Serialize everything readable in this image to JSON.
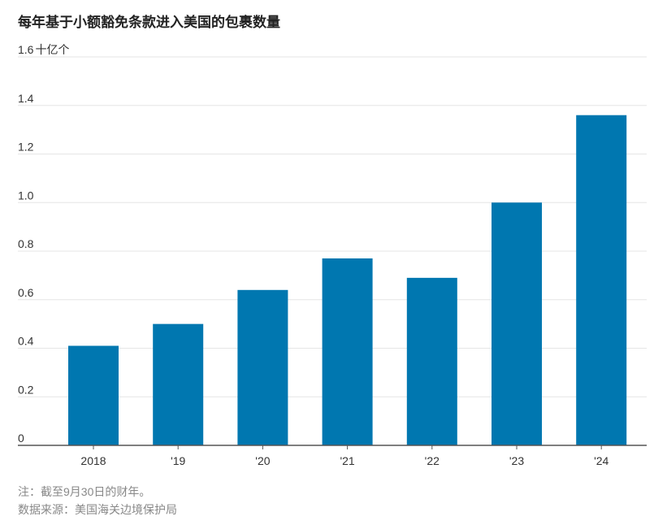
{
  "chart_data": {
    "type": "bar",
    "title": "每年基于小额豁免条款进入美国的包裹数量",
    "ylabel": "",
    "xlabel": "",
    "unit_label": "十亿个",
    "categories": [
      "2018",
      "'19",
      "'20",
      "'21",
      "'22",
      "'23",
      "'24"
    ],
    "values": [
      0.41,
      0.5,
      0.64,
      0.77,
      0.69,
      1.0,
      1.36
    ],
    "ylim": [
      0,
      1.6
    ],
    "yticks": [
      "0",
      "0.2",
      "0.4",
      "0.6",
      "0.8",
      "1.0",
      "1.2",
      "1.4",
      "1.6"
    ],
    "grid": true,
    "bar_color": "#0077b0",
    "grid_color": "#e6e6e6",
    "axis_color": "#555555"
  },
  "footer": {
    "note": "注：截至9月30日的财年。",
    "source": "数据来源：美国海关边境保护局"
  }
}
